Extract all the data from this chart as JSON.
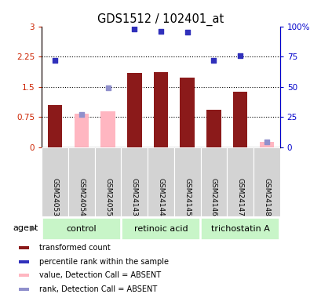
{
  "title": "GDS1512 / 102401_at",
  "samples": [
    "GSM24053",
    "GSM24054",
    "GSM24055",
    "GSM24143",
    "GSM24144",
    "GSM24145",
    "GSM24146",
    "GSM24147",
    "GSM24148"
  ],
  "bar_values": [
    1.05,
    null,
    null,
    1.85,
    1.87,
    1.72,
    0.93,
    1.38,
    null
  ],
  "bar_absent_values": [
    null,
    0.82,
    0.88,
    null,
    null,
    null,
    null,
    null,
    0.13
  ],
  "rank_present": [
    72,
    null,
    null,
    98,
    96,
    95,
    72,
    76,
    null
  ],
  "rank_absent": [
    null,
    27,
    49,
    null,
    null,
    null,
    null,
    null,
    4
  ],
  "ylim": [
    0,
    3.0
  ],
  "y2lim": [
    0,
    100
  ],
  "yticks": [
    0,
    0.75,
    1.5,
    2.25,
    3.0
  ],
  "ytick_labels": [
    "0",
    "0.75",
    "1.5",
    "2.25",
    "3"
  ],
  "y2ticks": [
    0,
    25,
    50,
    75,
    100
  ],
  "y2tick_labels": [
    "0",
    "25",
    "50",
    "75",
    "100%"
  ],
  "hlines": [
    0.75,
    1.5,
    2.25
  ],
  "bar_color": "#8b1a1a",
  "bar_absent_color": "#ffb6c1",
  "rank_color": "#3030bb",
  "rank_absent_color": "#9090cc",
  "bar_width": 0.55,
  "title_color": "#000000",
  "left_axis_color": "#cc2200",
  "right_axis_color": "#0000cc",
  "group_labels": [
    "control",
    "retinoic acid",
    "trichostatin A"
  ],
  "group_ranges": [
    [
      0,
      2
    ],
    [
      3,
      5
    ],
    [
      6,
      8
    ]
  ],
  "group_color_light": "#c8f5c8",
  "group_color_mid": "#90ee90",
  "sample_box_color": "#d3d3d3",
  "legend_items": [
    {
      "color": "#8b1a1a",
      "label": "transformed count",
      "type": "square"
    },
    {
      "color": "#3030bb",
      "label": "percentile rank within the sample",
      "type": "square"
    },
    {
      "color": "#ffb6c1",
      "label": "value, Detection Call = ABSENT",
      "type": "square"
    },
    {
      "color": "#9090cc",
      "label": "rank, Detection Call = ABSENT",
      "type": "square"
    }
  ]
}
